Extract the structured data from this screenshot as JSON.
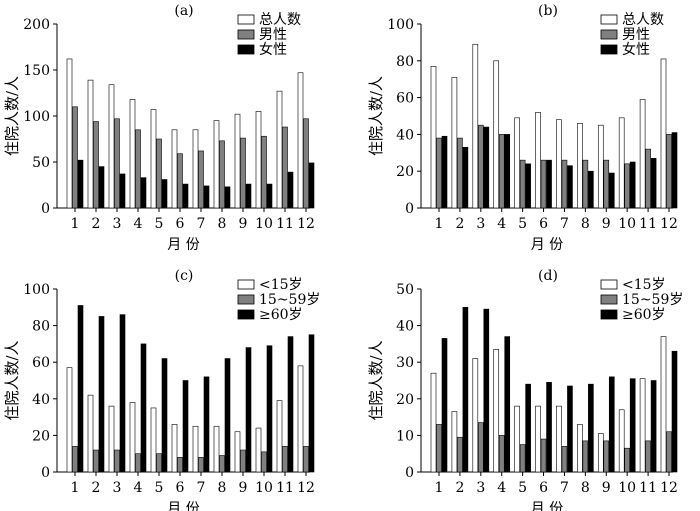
{
  "colors": {
    "white_bar": "#ffffff",
    "gray_bar": "#808080",
    "black_bar": "#000000",
    "stroke": "#000000"
  },
  "chart_data": [
    {
      "panel": "(a)",
      "type": "bar",
      "categories": [
        "1",
        "2",
        "3",
        "4",
        "5",
        "6",
        "7",
        "8",
        "9",
        "10",
        "11",
        "12"
      ],
      "series": [
        {
          "name": "总人数",
          "color": "#ffffff",
          "values": [
            162,
            139,
            134,
            118,
            107,
            85,
            85,
            95,
            102,
            105,
            127,
            147
          ]
        },
        {
          "name": "男性",
          "color": "#808080",
          "values": [
            110,
            94,
            97,
            85,
            75,
            59,
            62,
            73,
            76,
            78,
            88,
            97
          ]
        },
        {
          "name": "女性",
          "color": "#000000",
          "values": [
            52,
            45,
            37,
            33,
            31,
            26,
            24,
            23,
            26,
            26,
            39,
            49
          ]
        }
      ],
      "ylim": [
        0,
        200
      ],
      "yticks": [
        "0",
        "50",
        "100",
        "150",
        "200"
      ],
      "xlabel": "月  份",
      "ylabel": "住院人数/人",
      "legend": "top-right"
    },
    {
      "panel": "(b)",
      "type": "bar",
      "categories": [
        "1",
        "2",
        "3",
        "4",
        "5",
        "6",
        "7",
        "8",
        "9",
        "10",
        "11",
        "12"
      ],
      "series": [
        {
          "name": "总人数",
          "color": "#ffffff",
          "values": [
            77,
            71,
            89,
            80,
            49,
            52,
            48,
            46,
            45,
            49,
            59,
            81
          ]
        },
        {
          "name": "男性",
          "color": "#808080",
          "values": [
            38,
            38,
            45,
            40,
            26,
            26,
            26,
            26,
            26,
            24,
            32,
            40
          ]
        },
        {
          "name": "女性",
          "color": "#000000",
          "values": [
            39,
            33,
            44,
            40,
            24,
            26,
            23,
            20,
            19,
            25,
            27,
            41
          ]
        }
      ],
      "ylim": [
        0,
        100
      ],
      "yticks": [
        "0",
        "20",
        "40",
        "60",
        "80",
        "100"
      ],
      "xlabel": "月  份",
      "ylabel": "住院人数/人",
      "legend": "top-right"
    },
    {
      "panel": "(c)",
      "type": "bar",
      "categories": [
        "1",
        "2",
        "3",
        "4",
        "5",
        "6",
        "7",
        "8",
        "9",
        "10",
        "11",
        "12"
      ],
      "series": [
        {
          "name": "<15岁",
          "color": "#ffffff",
          "values": [
            57,
            42,
            36,
            38,
            35,
            26,
            25,
            25,
            22,
            24,
            39,
            58
          ]
        },
        {
          "name": "15~59岁",
          "color": "#808080",
          "values": [
            14,
            12,
            12,
            10,
            10,
            8,
            8,
            9,
            12,
            11,
            14,
            14
          ]
        },
        {
          "name": "≥60岁",
          "color": "#000000",
          "values": [
            91,
            85,
            86,
            70,
            62,
            50,
            52,
            62,
            68,
            69,
            74,
            75
          ]
        }
      ],
      "ylim": [
        0,
        100
      ],
      "yticks": [
        "0",
        "20",
        "40",
        "60",
        "80",
        "100"
      ],
      "xlabel": "月  份",
      "ylabel": "住院人数/人",
      "legend": "top-right"
    },
    {
      "panel": "(d)",
      "type": "bar",
      "categories": [
        "1",
        "2",
        "3",
        "4",
        "5",
        "6",
        "7",
        "8",
        "9",
        "10",
        "11",
        "12"
      ],
      "series": [
        {
          "name": "<15岁",
          "color": "#ffffff",
          "values": [
            27,
            16.5,
            31,
            33.5,
            18,
            18,
            18,
            13,
            10.5,
            17,
            25.5,
            37
          ]
        },
        {
          "name": "15~59岁",
          "color": "#808080",
          "values": [
            13,
            9.5,
            13.5,
            10,
            7.5,
            9,
            7,
            8.5,
            8.5,
            6.5,
            8.5,
            11
          ]
        },
        {
          "name": "≥60岁",
          "color": "#000000",
          "values": [
            36.5,
            45,
            44.5,
            37,
            24,
            24.5,
            23.5,
            24,
            26,
            25.5,
            25,
            33
          ]
        }
      ],
      "ylim": [
        0,
        50
      ],
      "yticks": [
        "0",
        "10",
        "20",
        "30",
        "40",
        "50"
      ],
      "xlabel": "月  份",
      "ylabel": "住院人数/人",
      "legend": "top-right"
    }
  ]
}
